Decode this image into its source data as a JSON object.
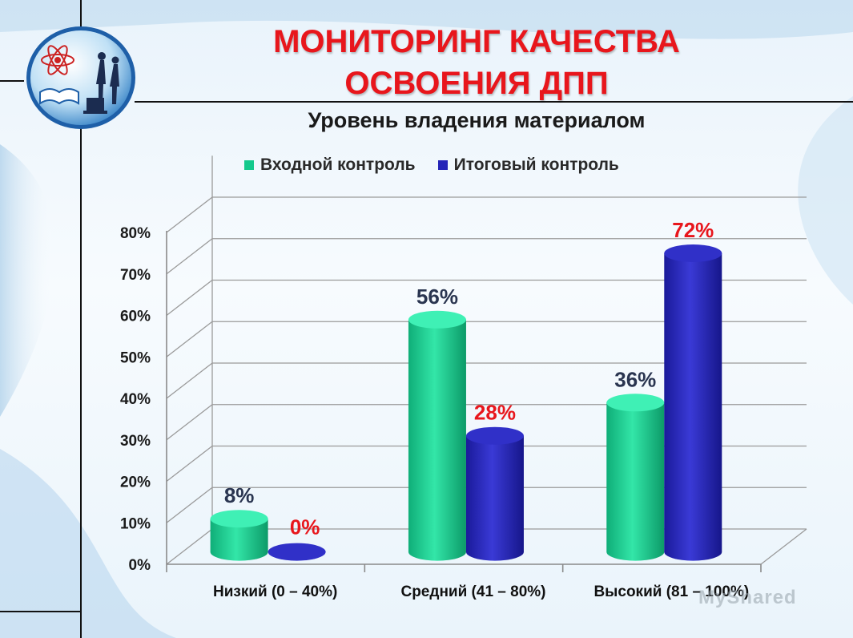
{
  "slide": {
    "title_line1": "МОНИТОРИНГ КАЧЕСТВА",
    "title_line2": "ОСВОЕНИЯ ДПП",
    "watermark": "MyShared"
  },
  "chart_data": {
    "type": "bar",
    "title": "Уровень владения материалом",
    "categories": [
      "Низкий (0 – 40%)",
      "Средний (41 – 80%)",
      "Высокий (81 – 100%)"
    ],
    "series": [
      {
        "name": "Входной контроль",
        "values": [
          8,
          56,
          36
        ],
        "labels": [
          "8%",
          "56%",
          "36%"
        ],
        "color": "#14c98c",
        "label_color": "#2a3550"
      },
      {
        "name": "Итоговый контроль",
        "values": [
          0,
          28,
          72
        ],
        "labels": [
          "0%",
          "28%",
          "72%"
        ],
        "color": "#2424b8",
        "label_color": "#e8161c"
      }
    ],
    "yticks": [
      "0%",
      "10%",
      "20%",
      "30%",
      "40%",
      "50%",
      "60%",
      "70%",
      "80%"
    ],
    "ylim": [
      0,
      80
    ],
    "grid": true,
    "legend_position": "top",
    "style": "3d-cylinder"
  }
}
